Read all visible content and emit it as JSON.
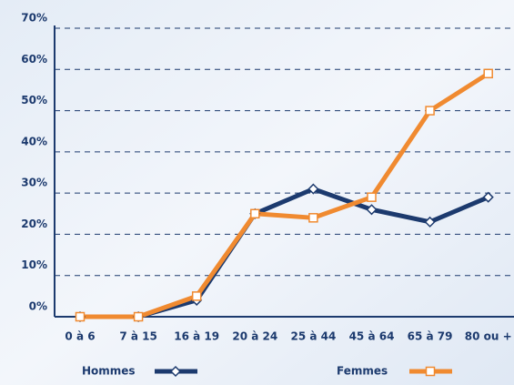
{
  "chart_data": {
    "type": "line",
    "categories": [
      "0 à 6",
      "7 à 15",
      "16 à 19",
      "20 à 24",
      "25 à 44",
      "45 à 64",
      "65 à 79",
      "80 ou +"
    ],
    "series": [
      {
        "name": "Hommes",
        "color": "#1c3a6e",
        "marker": "diamond",
        "values": [
          0,
          0,
          4,
          25,
          31,
          26,
          23,
          29
        ]
      },
      {
        "name": "Femmes",
        "color": "#f08a30",
        "marker": "square",
        "values": [
          0,
          0,
          5,
          25,
          24,
          29,
          50,
          59
        ]
      }
    ],
    "ylim": [
      0,
      70
    ],
    "yticks": [
      {
        "value": 0,
        "label": "0%"
      },
      {
        "value": 10,
        "label": "10%"
      },
      {
        "value": 20,
        "label": "20%"
      },
      {
        "value": 30,
        "label": "30%"
      },
      {
        "value": 40,
        "label": "40%"
      },
      {
        "value": 50,
        "label": "50%"
      },
      {
        "value": 60,
        "label": "60%"
      },
      {
        "value": 70,
        "label": "70%"
      }
    ],
    "grid": true
  }
}
